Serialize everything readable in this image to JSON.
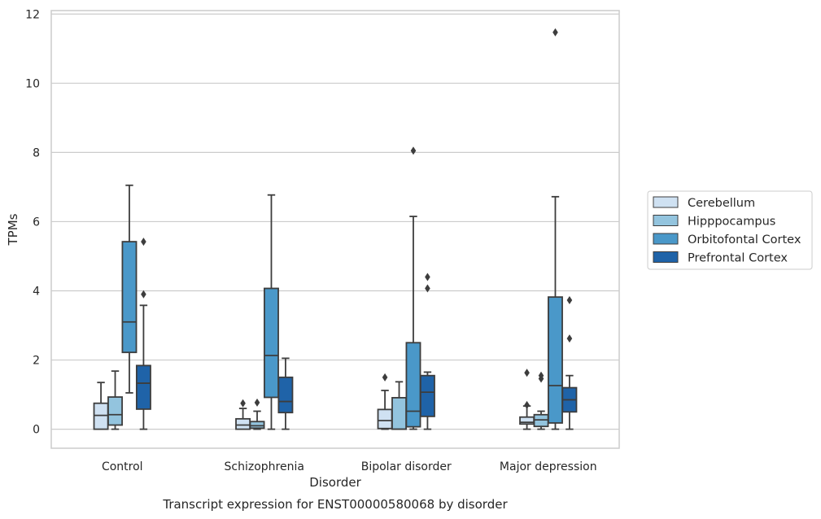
{
  "chart_data": {
    "type": "box",
    "title": "",
    "caption": "Transcript expression for ENST00000580068 by disorder",
    "xlabel": "Disorder",
    "ylabel": "TPMs",
    "ylim": [
      -0.55,
      12.1
    ],
    "yticks": [
      "0",
      "2",
      "4",
      "6",
      "8",
      "10",
      "12"
    ],
    "grid": "horizontal",
    "legend_position": "right",
    "categories": [
      "Control",
      "Schizophrenia",
      "Bipolar disorder",
      "Major depression"
    ],
    "series": [
      {
        "name": "Cerebellum",
        "color": "#cfe1f2",
        "boxes": [
          {
            "whislo": 0.0,
            "q1": 0.0,
            "med": 0.4,
            "q3": 0.75,
            "whishi": 1.35,
            "fliers": []
          },
          {
            "whislo": 0.0,
            "q1": 0.0,
            "med": 0.12,
            "q3": 0.3,
            "whishi": 0.6,
            "fliers": [
              0.75
            ]
          },
          {
            "whislo": 0.0,
            "q1": 0.02,
            "med": 0.25,
            "q3": 0.57,
            "whishi": 1.12,
            "fliers": [
              1.5
            ]
          },
          {
            "whislo": 0.0,
            "q1": 0.15,
            "med": 0.2,
            "q3": 0.35,
            "whishi": 0.67,
            "fliers": [
              0.7,
              1.63
            ]
          }
        ]
      },
      {
        "name": "Hipppocampus",
        "color": "#93c4de",
        "boxes": [
          {
            "whislo": 0.0,
            "q1": 0.12,
            "med": 0.42,
            "q3": 0.93,
            "whishi": 1.68,
            "fliers": []
          },
          {
            "whislo": 0.0,
            "q1": 0.03,
            "med": 0.1,
            "q3": 0.22,
            "whishi": 0.52,
            "fliers": [
              0.77
            ]
          },
          {
            "whislo": 0.0,
            "q1": 0.0,
            "med": 0.0,
            "q3": 0.91,
            "whishi": 1.37,
            "fliers": []
          },
          {
            "whislo": 0.0,
            "q1": 0.08,
            "med": 0.27,
            "q3": 0.42,
            "whishi": 0.52,
            "fliers": [
              1.46,
              1.55
            ]
          }
        ]
      },
      {
        "name": "Orbitofontal Cortex",
        "color": "#4a98c9",
        "boxes": [
          {
            "whislo": 1.05,
            "q1": 2.22,
            "med": 3.1,
            "q3": 5.42,
            "whishi": 7.05,
            "fliers": []
          },
          {
            "whislo": 0.0,
            "q1": 0.92,
            "med": 2.13,
            "q3": 4.07,
            "whishi": 6.77,
            "fliers": []
          },
          {
            "whislo": 0.0,
            "q1": 0.07,
            "med": 0.52,
            "q3": 2.5,
            "whishi": 6.15,
            "fliers": [
              8.05
            ]
          },
          {
            "whislo": 0.0,
            "q1": 0.18,
            "med": 1.26,
            "q3": 3.82,
            "whishi": 6.72,
            "fliers": [
              11.47
            ]
          }
        ]
      },
      {
        "name": "Prefrontal Cortex",
        "color": "#1f63a8",
        "boxes": [
          {
            "whislo": 0.0,
            "q1": 0.58,
            "med": 1.33,
            "q3": 1.84,
            "whishi": 3.58,
            "fliers": [
              3.9,
              5.42
            ]
          },
          {
            "whislo": 0.0,
            "q1": 0.48,
            "med": 0.8,
            "q3": 1.5,
            "whishi": 2.05,
            "fliers": []
          },
          {
            "whislo": 0.0,
            "q1": 0.37,
            "med": 1.07,
            "q3": 1.55,
            "whishi": 1.65,
            "fliers": [
              4.07,
              4.4
            ]
          },
          {
            "whislo": 0.0,
            "q1": 0.5,
            "med": 0.85,
            "q3": 1.2,
            "whishi": 1.55,
            "fliers": [
              2.62,
              3.73
            ]
          }
        ]
      }
    ]
  }
}
